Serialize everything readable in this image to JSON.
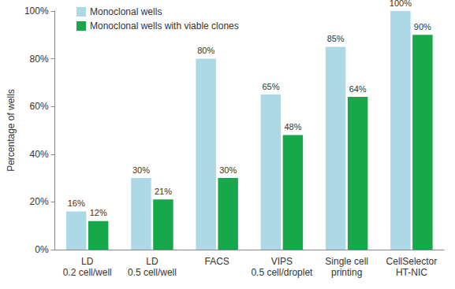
{
  "chart_data": {
    "type": "bar",
    "y_label": "Percentage of wells",
    "categories": [
      "LD\n0.2 cell/well",
      "LD\n0.5 cell/well",
      "FACS",
      "VIPS\n0.5 cell/droplet",
      "Single cell\nprinting",
      "CellSelector\nHT-NIC"
    ],
    "series": [
      {
        "name": "Monoclonal wells",
        "color": "#add8e6",
        "values": [
          16,
          30,
          80,
          65,
          85,
          100
        ],
        "value_labels": [
          "16%",
          "30%",
          "80%",
          "65%",
          "85%",
          "100%"
        ]
      },
      {
        "name": "Monoclonal wells with viable clones",
        "color": "#16a84a",
        "values": [
          12,
          21,
          30,
          48,
          64,
          90
        ],
        "value_labels": [
          "12%",
          "21%",
          "30%",
          "48%",
          "64%",
          "90%"
        ]
      }
    ],
    "ylim": [
      0,
      100
    ],
    "yticks": [
      {
        "value": 0,
        "label": "0%"
      },
      {
        "value": 20,
        "label": "20%"
      },
      {
        "value": 40,
        "label": "40%"
      },
      {
        "value": 60,
        "label": "60%"
      },
      {
        "value": 80,
        "label": "80%"
      },
      {
        "value": 100,
        "label": "100%"
      }
    ],
    "grid": false,
    "legend": "top-left",
    "data_labels": true
  }
}
